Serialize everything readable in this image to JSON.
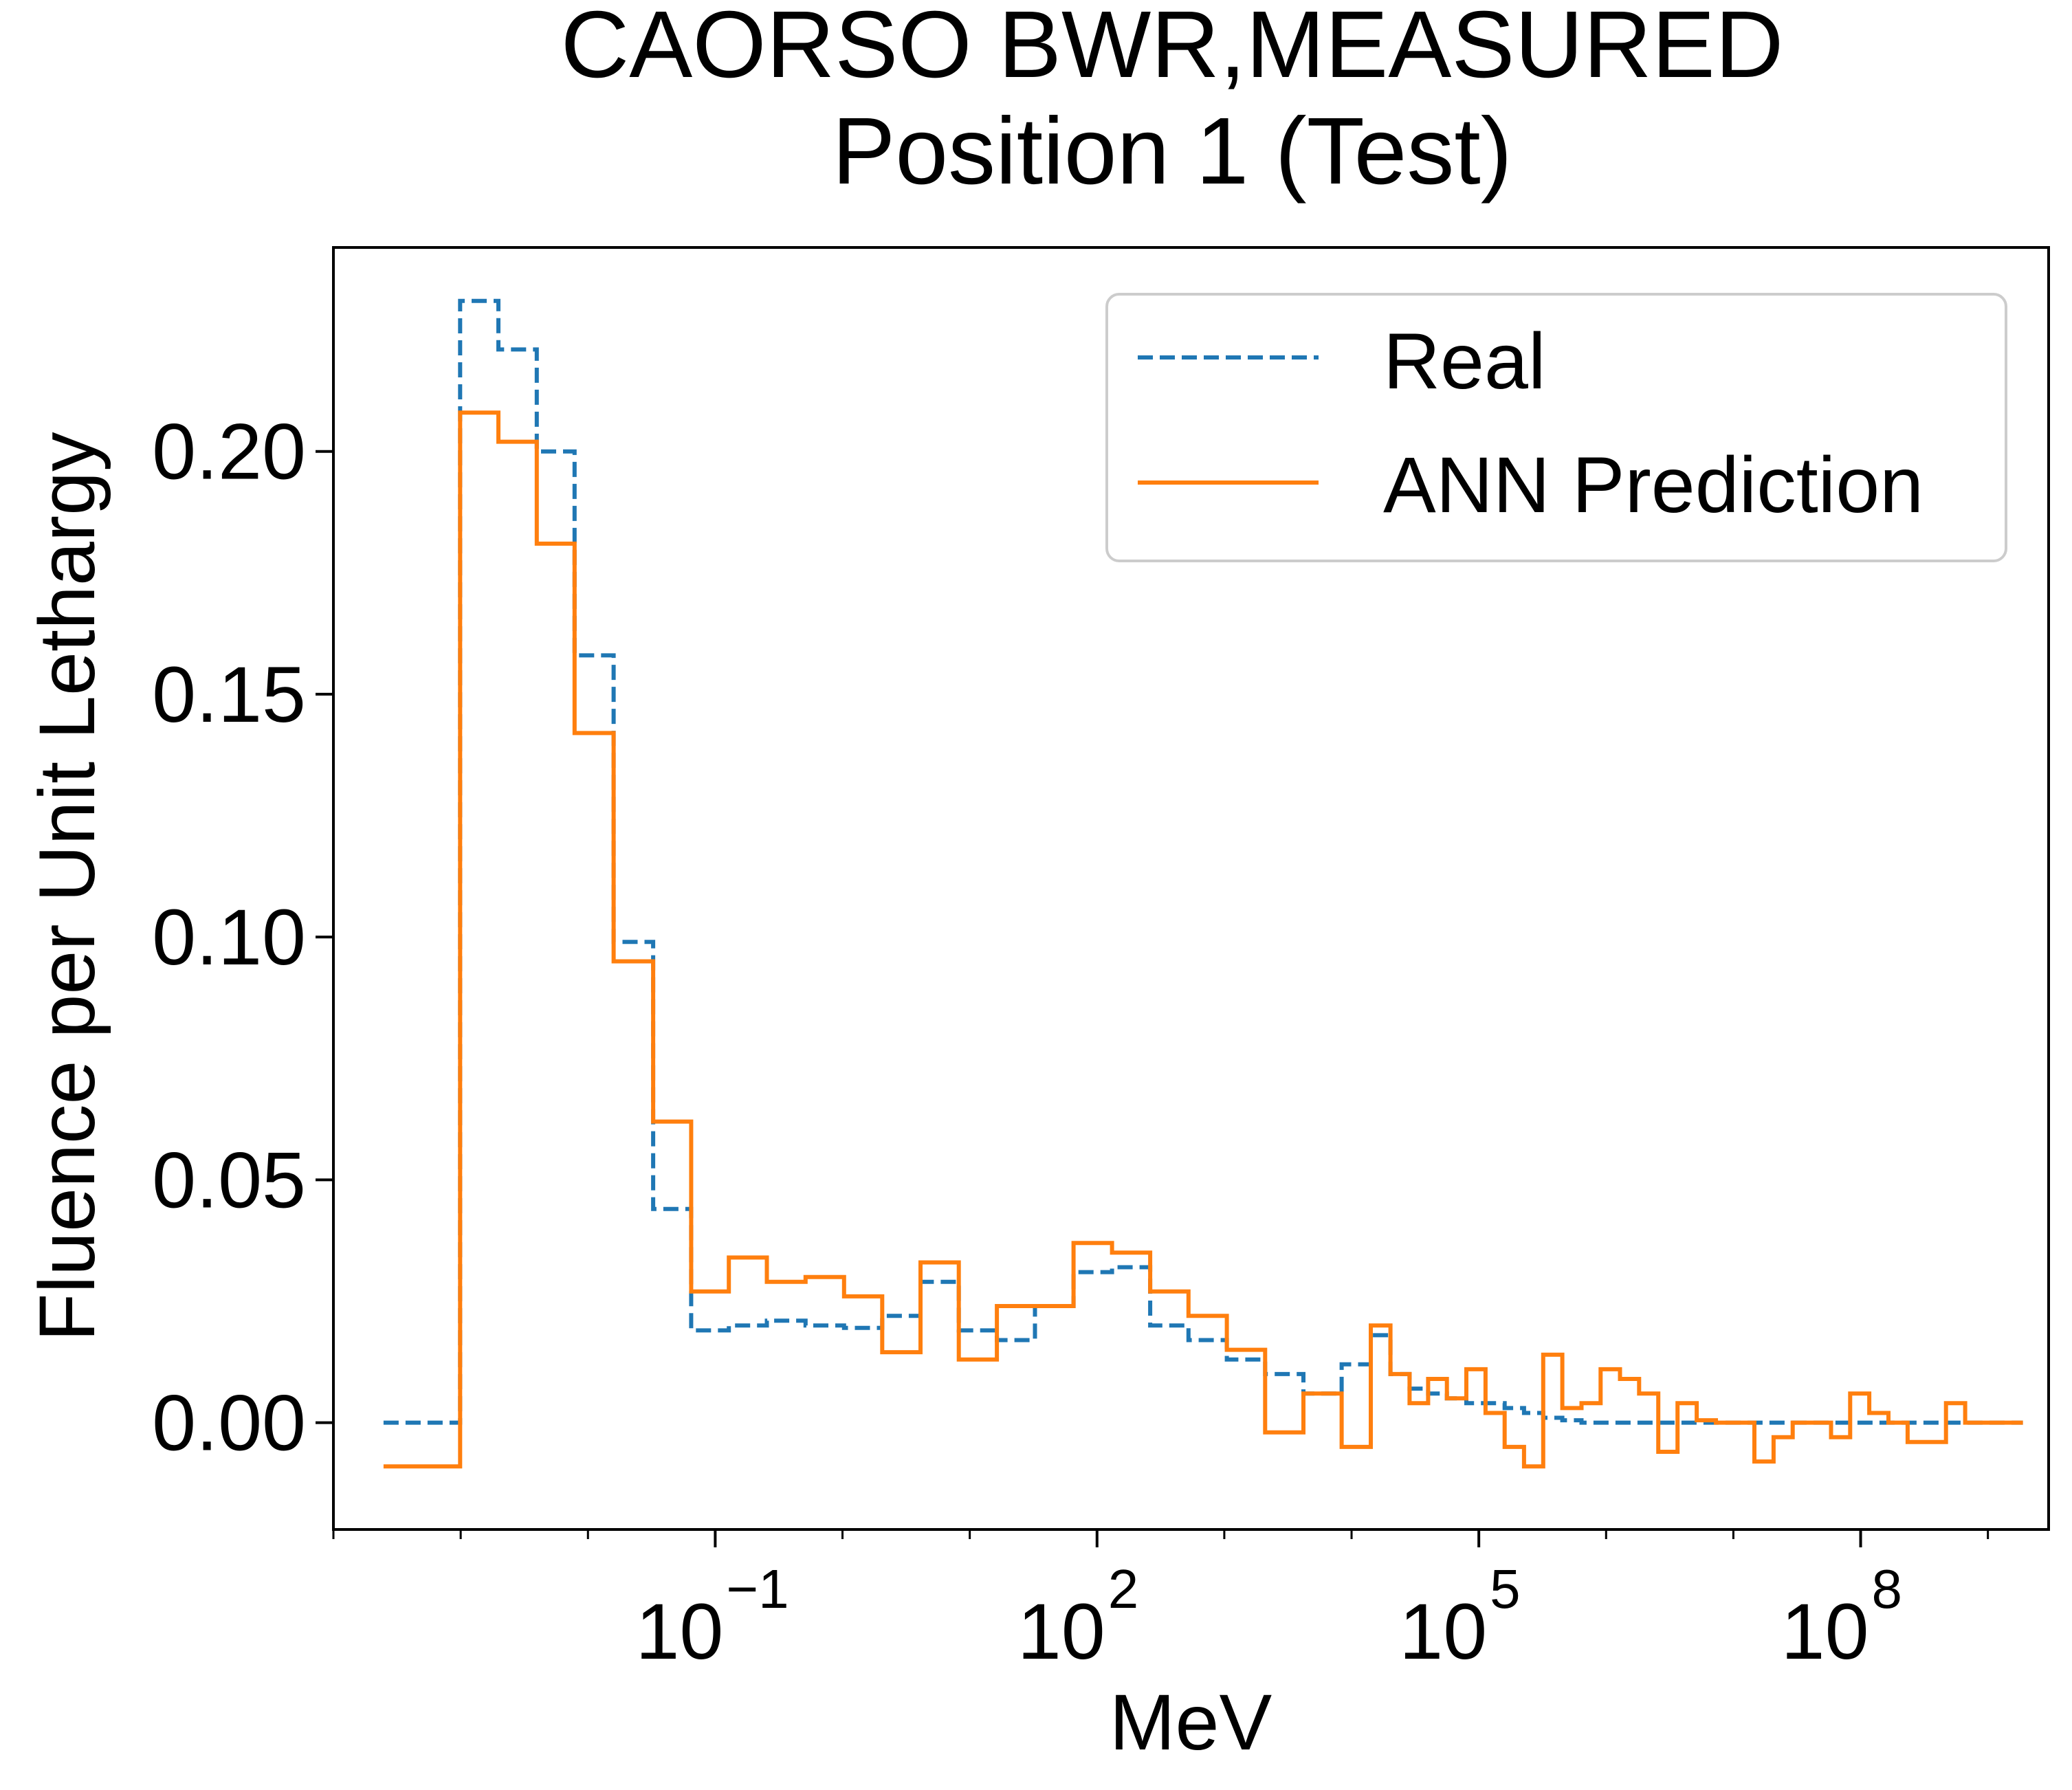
{
  "chart_data": {
    "type": "line",
    "step": true,
    "title": [
      "CAORSO BWR,MEASURED",
      "Position 1 (Test)"
    ],
    "xlabel": "MeV",
    "ylabel": "Fluence per Unit Lethargy",
    "xscale": "log",
    "xlim": [
      0.0001,
      3000000000
    ],
    "ylim": [
      -0.022,
      0.242
    ],
    "x_ticks": [
      {
        "base": "10",
        "exp": "−1",
        "value": 0.1
      },
      {
        "base": "10",
        "exp": "2",
        "value": 100
      },
      {
        "base": "10",
        "exp": "5",
        "value": 100000
      },
      {
        "base": "10",
        "exp": "8",
        "value": 100000000
      }
    ],
    "y_ticks": [
      {
        "label": "0.00",
        "value": 0.0
      },
      {
        "label": "0.05",
        "value": 0.05
      },
      {
        "label": "0.10",
        "value": 0.1
      },
      {
        "label": "0.15",
        "value": 0.15
      },
      {
        "label": "0.20",
        "value": 0.2
      }
    ],
    "grid": false,
    "legend_position": "top-right",
    "series": [
      {
        "name": "Real",
        "color": "#1f77b4",
        "linestyle": "dashed",
        "x": [
          0.00035,
          0.0007,
          0.0014,
          0.0028,
          0.0056,
          0.011,
          0.023,
          0.046,
          0.091,
          0.18,
          0.36,
          0.73,
          1.45,
          2.9,
          5.8,
          11.6,
          23,
          46,
          93,
          185,
          370,
          740,
          1480,
          2960,
          5920,
          11800,
          17000,
          24000,
          34000,
          47000,
          67000,
          95000,
          134000,
          190000,
          270000,
          380000,
          540000,
          760000,
          1080000,
          1530000,
          2160000,
          3060000,
          4330000,
          6130000,
          8670000,
          12300000,
          17400000,
          24600000,
          34800000,
          49200000,
          69600000,
          98400000,
          139000000,
          197000000,
          278000000,
          394000000,
          557000000,
          788000000,
          1110000000,
          1580000000
        ],
        "y": [
          0.0,
          0.0,
          0.231,
          0.221,
          0.2,
          0.158,
          0.099,
          0.044,
          0.019,
          0.02,
          0.021,
          0.02,
          0.0195,
          0.022,
          0.029,
          0.019,
          0.017,
          0.024,
          0.031,
          0.032,
          0.02,
          0.017,
          0.013,
          0.01,
          0.006,
          0.012,
          0.018,
          0.01,
          0.007,
          0.006,
          0.005,
          0.004,
          0.004,
          0.003,
          0.002,
          0.001,
          0.0005,
          0.0,
          0.0,
          0.0,
          0.0,
          0.0,
          0.0,
          0.0,
          0.0,
          0.0,
          0.0,
          0.0,
          0.0,
          0.0,
          0.0,
          0.0,
          0.0,
          0.0,
          0.0,
          0.0,
          0.0,
          0.0,
          0.0,
          0.0
        ]
      },
      {
        "name": "ANN Prediction",
        "color": "#ff7f0e",
        "linestyle": "solid",
        "x": [
          0.00035,
          0.0007,
          0.0014,
          0.0028,
          0.0056,
          0.011,
          0.023,
          0.046,
          0.091,
          0.18,
          0.36,
          0.73,
          1.45,
          2.9,
          5.8,
          11.6,
          23,
          46,
          93,
          185,
          370,
          740,
          1480,
          2960,
          5920,
          11800,
          17000,
          24000,
          34000,
          47000,
          67000,
          95000,
          134000,
          190000,
          270000,
          380000,
          540000,
          760000,
          1080000,
          1530000,
          2160000,
          3060000,
          4330000,
          6130000,
          8670000,
          12300000,
          17400000,
          24600000,
          34800000,
          49200000,
          69600000,
          98400000,
          139000000,
          197000000,
          278000000,
          394000000,
          557000000,
          788000000,
          1110000000,
          1580000000
        ],
        "y": [
          -0.009,
          -0.009,
          0.208,
          0.202,
          0.181,
          0.142,
          0.095,
          0.062,
          0.027,
          0.034,
          0.029,
          0.03,
          0.026,
          0.0145,
          0.033,
          0.013,
          0.024,
          0.024,
          0.037,
          0.035,
          0.027,
          0.022,
          0.015,
          -0.002,
          0.006,
          -0.005,
          0.02,
          0.01,
          0.004,
          0.009,
          0.005,
          0.011,
          0.002,
          -0.005,
          -0.009,
          0.014,
          0.003,
          0.004,
          0.011,
          0.009,
          0.006,
          -0.006,
          0.004,
          0.0005,
          0.0,
          0.0,
          -0.008,
          -0.003,
          0.0,
          0.0,
          -0.003,
          0.006,
          0.002,
          0.0,
          -0.004,
          -0.004,
          0.004,
          0.0,
          0.0,
          0.0
        ]
      }
    ]
  }
}
